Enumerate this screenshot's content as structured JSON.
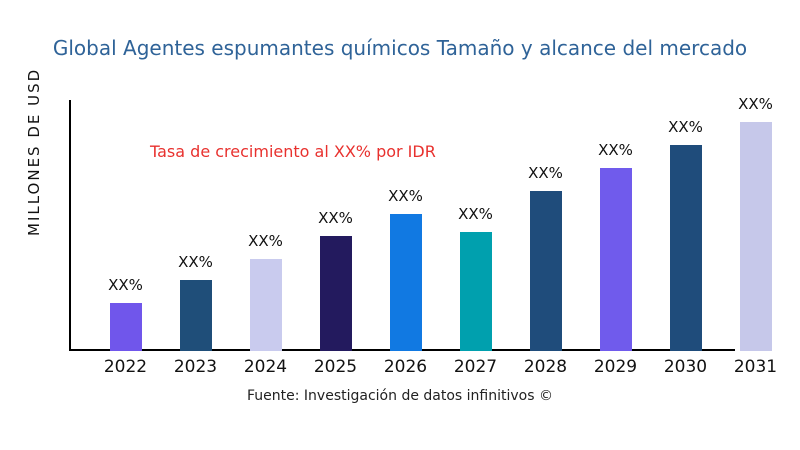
{
  "chart_data": {
    "type": "bar",
    "title": "Global Agentes espumantes químicos Tamaño y alcance del mercado",
    "ylabel": "MILLONES DE USD",
    "xlabel": "",
    "annotation": "Tasa de crecimiento al XX% por IDR",
    "source": "Fuente: Investigación de datos infinitivos ©",
    "categories": [
      "2022",
      "2023",
      "2024",
      "2025",
      "2026",
      "2027",
      "2028",
      "2029",
      "2030",
      "2031"
    ],
    "values_pct_of_max": [
      21,
      31,
      40,
      50,
      60,
      52,
      70,
      80,
      90,
      100
    ],
    "bar_labels": [
      "XX%",
      "XX%",
      "XX%",
      "XX%",
      "XX%",
      "XX%",
      "XX%",
      "XX%",
      "XX%",
      "XX%"
    ],
    "bar_colors": [
      "#7056EB",
      "#1F4E79",
      "#C9CBEE",
      "#231A5E",
      "#1179E2",
      "#00A0AE",
      "#1F4C7B",
      "#705BEC",
      "#1F4C7B",
      "#C6C8EA"
    ],
    "title_color": "#2f6398",
    "annotation_color": "#e8312e",
    "axis_color": "#000000",
    "grid": false,
    "legend": false,
    "numeric_y_ticks_visible": false
  }
}
